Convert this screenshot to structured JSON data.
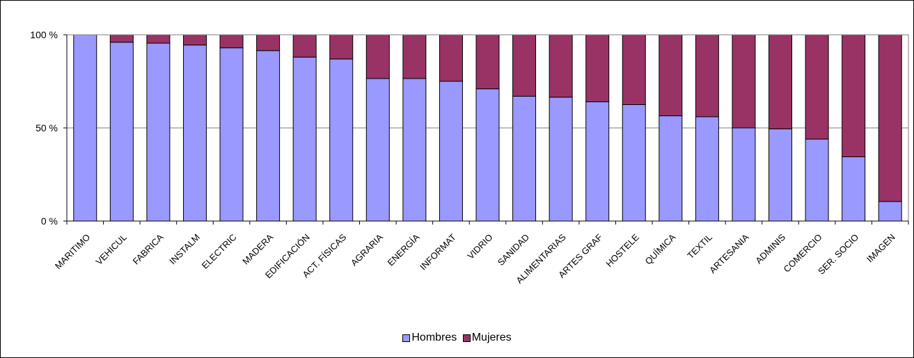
{
  "chart_data": {
    "type": "bar",
    "stacked": true,
    "percent": true,
    "categories": [
      "MARITIMO",
      "VEHICUL",
      "FABRICA",
      "INSTALM",
      "ELECTRIC",
      "MADERA",
      "EDIFICACIÓN",
      "ACT. FÍSICAS",
      "AGRARIA",
      "ENERGÍA",
      "INFORMAT",
      "VIDRIO",
      "SANIDAD",
      "ALIMENTARIAS",
      "ARTES GRAF",
      "HOSTELE",
      "QUÍMICA",
      "TEXTIL",
      "ARTESANIA",
      "ADMINIS",
      "COMERCIO",
      "SER. SOCIO",
      "IMAGEN"
    ],
    "series": [
      {
        "name": "Hombres",
        "color": "#9999ff",
        "values": [
          100,
          96,
          95.5,
          94.5,
          93,
          91.5,
          88,
          87,
          76.5,
          76.5,
          75,
          71,
          67,
          66.5,
          64,
          62.5,
          56.5,
          56,
          50,
          49.5,
          44,
          34.5,
          10.5
        ]
      },
      {
        "name": "Mujeres",
        "color": "#993366",
        "values": [
          0,
          4,
          4.5,
          5.5,
          7,
          8.5,
          12,
          13,
          23.5,
          23.5,
          25,
          29,
          33,
          33.5,
          36,
          37.5,
          43.5,
          44,
          50,
          50.5,
          56,
          65.5,
          89.5
        ]
      }
    ],
    "yticks": [
      "0 %",
      "50 %",
      "100 %"
    ],
    "ylim": [
      0,
      100
    ],
    "grid": true,
    "legend_position": "bottom"
  }
}
